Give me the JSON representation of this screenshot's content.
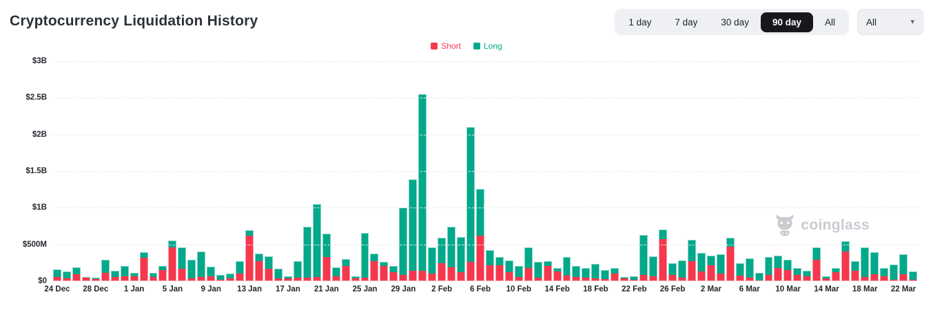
{
  "header": {
    "title": "Cryptocurrency Liquidation History",
    "range_buttons": [
      {
        "label": "1 day",
        "active": false
      },
      {
        "label": "7 day",
        "active": false
      },
      {
        "label": "30 day",
        "active": false
      },
      {
        "label": "90 day",
        "active": true
      },
      {
        "label": "All",
        "active": false
      }
    ],
    "filter_dropdown": {
      "value": "All"
    }
  },
  "legend": [
    {
      "label": "Short",
      "color": "#f5384d"
    },
    {
      "label": "Long",
      "color": "#02a88a"
    }
  ],
  "watermark": {
    "text": "coinglass"
  },
  "icons": {
    "dropdown_caret": "▾"
  },
  "chart_data": {
    "type": "bar",
    "stacked": true,
    "title": "Cryptocurrency Liquidation History",
    "values_unit": "USD millions",
    "y_max_millions": 3000,
    "y_ticks": [
      "$3B",
      "$2.5B",
      "$2B",
      "$1.5B",
      "$1B",
      "$500M",
      "$0"
    ],
    "grid": "dashed horizontal",
    "legend_position": "top",
    "categories": [
      "24 Dec",
      "25 Dec",
      "26 Dec",
      "27 Dec",
      "28 Dec",
      "29 Dec",
      "30 Dec",
      "31 Dec",
      "1 Jan",
      "2 Jan",
      "3 Jan",
      "4 Jan",
      "5 Jan",
      "6 Jan",
      "7 Jan",
      "8 Jan",
      "9 Jan",
      "10 Jan",
      "11 Jan",
      "12 Jan",
      "13 Jan",
      "14 Jan",
      "15 Jan",
      "16 Jan",
      "17 Jan",
      "18 Jan",
      "19 Jan",
      "20 Jan",
      "21 Jan",
      "22 Jan",
      "23 Jan",
      "24 Jan",
      "25 Jan",
      "26 Jan",
      "27 Jan",
      "28 Jan",
      "29 Jan",
      "30 Jan",
      "31 Jan",
      "1 Feb",
      "2 Feb",
      "3 Feb",
      "4 Feb",
      "5 Feb",
      "6 Feb",
      "7 Feb",
      "8 Feb",
      "9 Feb",
      "10 Feb",
      "11 Feb",
      "12 Feb",
      "13 Feb",
      "14 Feb",
      "15 Feb",
      "16 Feb",
      "17 Feb",
      "18 Feb",
      "19 Feb",
      "20 Feb",
      "21 Feb",
      "22 Feb",
      "23 Feb",
      "24 Feb",
      "25 Feb",
      "26 Feb",
      "27 Feb",
      "28 Feb",
      "1 Mar",
      "2 Mar",
      "3 Mar",
      "4 Mar",
      "5 Mar",
      "6 Mar",
      "7 Mar",
      "8 Mar",
      "9 Mar",
      "10 Mar",
      "11 Mar",
      "12 Mar",
      "13 Mar",
      "14 Mar",
      "15 Mar",
      "16 Mar",
      "17 Mar",
      "18 Mar",
      "19 Mar",
      "20 Mar",
      "21 Mar",
      "22 Mar",
      "23 Mar"
    ],
    "x_tick_every": 4,
    "x_tick_labels": [
      "24 Dec",
      "28 Dec",
      "1 Jan",
      "5 Jan",
      "9 Jan",
      "13 Jan",
      "17 Jan",
      "21 Jan",
      "25 Jan",
      "29 Jan",
      "2 Feb",
      "6 Feb",
      "10 Feb",
      "14 Feb",
      "18 Feb",
      "22 Feb",
      "26 Feb",
      "2 Mar",
      "6 Mar",
      "10 Mar",
      "14 Mar",
      "18 Mar",
      "22 Mar"
    ],
    "series": [
      {
        "name": "Short",
        "color": "#f5384d",
        "values": [
          55,
          35,
          95,
          45,
          30,
          110,
          55,
          70,
          70,
          315,
          55,
          150,
          460,
          165,
          35,
          60,
          65,
          15,
          40,
          100,
          620,
          270,
          170,
          40,
          40,
          45,
          50,
          55,
          325,
          70,
          205,
          40,
          45,
          270,
          210,
          120,
          80,
          145,
          140,
          100,
          245,
          190,
          120,
          260,
          620,
          215,
          220,
          120,
          55,
          175,
          50,
          205,
          135,
          75,
          55,
          50,
          40,
          25,
          100,
          40,
          15,
          85,
          65,
          575,
          85,
          50,
          270,
          135,
          220,
          105,
          465,
          75,
          50,
          10,
          85,
          180,
          150,
          80,
          65,
          290,
          40,
          125,
          400,
          145,
          55,
          95,
          70,
          15,
          95,
          15
        ]
      },
      {
        "name": "Long",
        "color": "#02a88a",
        "values": [
          105,
          95,
          95,
          15,
          15,
          185,
          85,
          140,
          45,
          75,
          55,
          55,
          90,
          295,
          260,
          345,
          130,
          70,
          60,
          170,
          75,
          105,
          165,
          130,
          30,
          225,
          695,
          995,
          325,
          120,
          95,
          30,
          610,
          105,
          50,
          90,
          920,
          1245,
          2410,
          360,
          350,
          555,
          480,
          1840,
          640,
          205,
          105,
          165,
          150,
          285,
          210,
          65,
          45,
          250,
          150,
          130,
          190,
          125,
          80,
          15,
          55,
          540,
          275,
          130,
          155,
          235,
          290,
          250,
          130,
          260,
          125,
          170,
          260,
          105,
          240,
          170,
          140,
          100,
          80,
          165,
          25,
          55,
          140,
          125,
          400,
          300,
          110,
          210,
          275,
          120
        ]
      }
    ]
  }
}
